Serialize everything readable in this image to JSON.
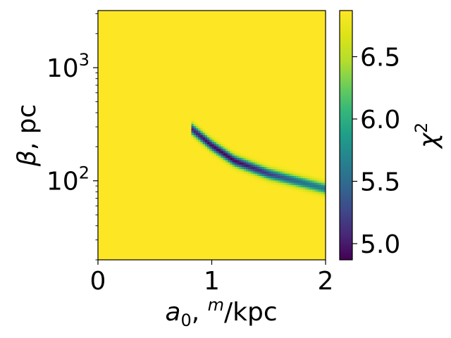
{
  "chart_data": {
    "type": "heatmap",
    "title": "",
    "xlabel": {
      "var": "a",
      "sub": "0",
      "sep": ", ",
      "sup": "m",
      "unit": "/kpc"
    },
    "ylabel": {
      "var": "β",
      "unit": ", pc"
    },
    "xlim": [
      0,
      2
    ],
    "ylim": [
      20,
      3200
    ],
    "yscale": "log",
    "x_ticks": [
      {
        "value": 0,
        "label": "0"
      },
      {
        "value": 1,
        "label": "1"
      },
      {
        "value": 2,
        "label": "2"
      }
    ],
    "y_ticks": [
      {
        "value": 100,
        "base": "10",
        "exp": "2"
      },
      {
        "value": 1000,
        "base": "10",
        "exp": "3"
      }
    ],
    "colorbar": {
      "label": {
        "var": "χ",
        "sup": "2"
      },
      "colormap": "viridis",
      "range": [
        4.87,
        6.87
      ],
      "ticks": [
        {
          "value": 5.0,
          "label": "5.0"
        },
        {
          "value": 5.5,
          "label": "5.5"
        },
        {
          "value": 6.0,
          "label": "6.0"
        },
        {
          "value": 6.5,
          "label": "6.5"
        }
      ]
    },
    "background_value": 6.87,
    "valley": {
      "description_points": [
        {
          "x": 0.82,
          "y": 290
        },
        {
          "x": 1.0,
          "y": 205
        },
        {
          "x": 1.2,
          "y": 150
        },
        {
          "x": 1.5,
          "y": 115
        },
        {
          "x": 2.0,
          "y": 85
        }
      ],
      "min_value": 4.87,
      "min_x": 1.1,
      "x_start": 0.82
    }
  }
}
